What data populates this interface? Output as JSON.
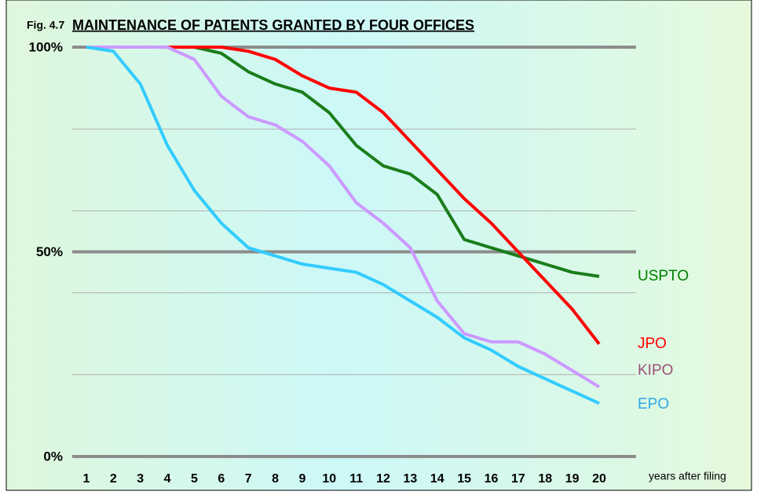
{
  "chart_data": {
    "type": "line",
    "figure_label": "Fig. 4.7",
    "title": "MAINTENANCE OF PATENTS GRANTED BY FOUR OFFICES",
    "xlabel": "years after filing",
    "categories": [
      "1",
      "2",
      "3",
      "4",
      "5",
      "6",
      "7",
      "8",
      "9",
      "10",
      "11",
      "12",
      "13",
      "14",
      "15",
      "16",
      "17",
      "18",
      "19",
      "20"
    ],
    "ylim": [
      0,
      100
    ],
    "yticks": [
      {
        "value": 0,
        "label": "0%"
      },
      {
        "value": 50,
        "label": "50%"
      },
      {
        "value": 100,
        "label": "100%"
      }
    ],
    "minor_gridlines": [
      20,
      40,
      60,
      80
    ],
    "grid": true,
    "series": [
      {
        "name": "USPTO",
        "color": "#1a7d1a",
        "label_color": "#008000",
        "values": [
          100,
          100,
          100,
          100,
          100,
          98.5,
          94,
          91,
          89,
          84,
          76,
          71,
          69,
          64,
          53,
          51,
          49,
          47,
          45,
          44
        ]
      },
      {
        "name": "JPO",
        "color": "#ff0000",
        "label_color": "#ff0000",
        "values": [
          100,
          100,
          100,
          100,
          100,
          100,
          99,
          97,
          93,
          90,
          89,
          84,
          77,
          70,
          63,
          57,
          50,
          43,
          36,
          27.5
        ]
      },
      {
        "name": "KIPO",
        "color": "#cc99ff",
        "label_color": "#9b4f7b",
        "values": [
          100,
          100,
          100,
          100,
          97,
          88,
          83,
          81,
          77,
          71,
          62,
          57,
          51,
          38,
          30,
          28,
          28,
          25,
          21,
          17
        ]
      },
      {
        "name": "EPO",
        "color": "#33ccff",
        "label_color": "#2fa8e8",
        "values": [
          100,
          99,
          91,
          76,
          65,
          57,
          51,
          49,
          47,
          46,
          45,
          42,
          38,
          34,
          29,
          26,
          22,
          19,
          16,
          13
        ]
      }
    ]
  }
}
